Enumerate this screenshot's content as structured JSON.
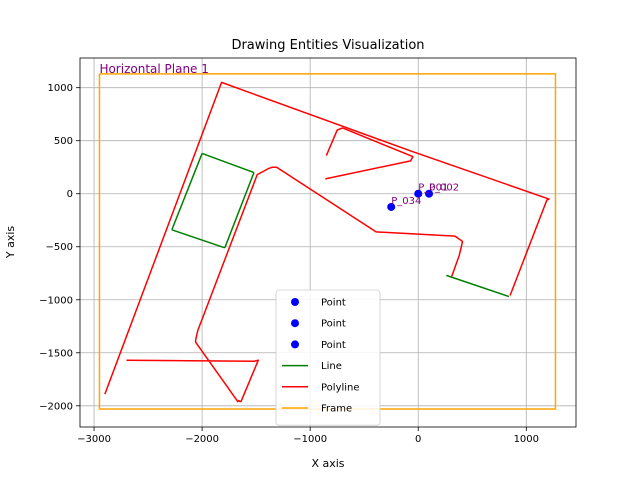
{
  "chart_data": {
    "type": "line",
    "title": "Drawing Entities Visualization",
    "xlabel": "X axis",
    "ylabel": "Y axis",
    "xlim": [
      -3130,
      1460
    ],
    "ylim": [
      -2200,
      1280
    ],
    "xticks": [
      -3000,
      -2000,
      -1000,
      0,
      1000
    ],
    "yticks": [
      -2000,
      -1500,
      -1000,
      -500,
      0,
      500,
      1000
    ],
    "grid": true,
    "legend_placement": "bottom-center",
    "colors": {
      "point": "#0000ff",
      "line": "#008000",
      "polyline": "#ff0000",
      "frame": "#ffa500",
      "annotation": "#800080"
    },
    "points": [
      {
        "label": "P_001",
        "x": 0,
        "y": 0
      },
      {
        "label": "P_002",
        "x": 100,
        "y": 0
      },
      {
        "label": "P_034",
        "x": -250,
        "y": -125
      }
    ],
    "lines": [
      {
        "x": [
          -2000,
          -1520
        ],
        "y": [
          380,
          200
        ]
      },
      {
        "x": [
          -2280,
          -1790
        ],
        "y": [
          -340,
          -510
        ]
      },
      {
        "x": [
          -2000,
          -2280
        ],
        "y": [
          380,
          -340
        ]
      },
      {
        "x": [
          -1520,
          -1790
        ],
        "y": [
          200,
          -510
        ]
      },
      {
        "x": [
          260,
          840
        ],
        "y": [
          -770,
          -970
        ]
      }
    ],
    "polylines": [
      {
        "x": [
          -2900,
          -1820,
          -60,
          1210,
          1190,
          850
        ],
        "y": [
          -1890,
          1050,
          400,
          -50,
          -60,
          -960
        ]
      },
      {
        "x": [
          -850,
          -750,
          -700,
          -50,
          -70,
          -860
        ],
        "y": [
          360,
          600,
          620,
          350,
          310,
          140
        ]
      },
      {
        "x": [
          -2700,
          -1520,
          -1480,
          -1640,
          -1650,
          -1660,
          -1670,
          -2060,
          -2060,
          -2040,
          -1490,
          -1380,
          -1350,
          -1310,
          -390,
          340,
          410,
          380,
          310
        ],
        "y": [
          -1570,
          -1580,
          -1570,
          -1960,
          -1960,
          -1950,
          -1960,
          -1400,
          -1380,
          -1290,
          180,
          240,
          250,
          250,
          -360,
          -400,
          -450,
          -580,
          -780
        ]
      }
    ],
    "frame": {
      "x": [
        -2950,
        1270,
        1270,
        -2950,
        -2950
      ],
      "y": [
        1130,
        1130,
        -2030,
        -2030,
        1130
      ]
    },
    "plane_label": "Horizontal Plane 1",
    "legend": [
      "Point",
      "Point",
      "Point",
      "Line",
      "Polyline",
      "Frame"
    ]
  }
}
